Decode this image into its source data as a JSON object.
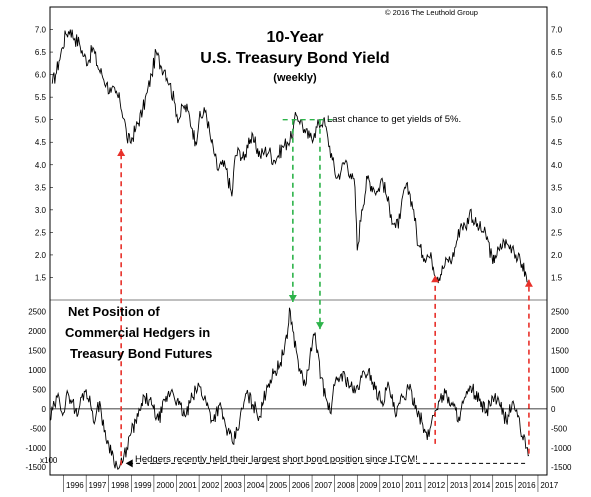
{
  "copyright": "© 2016 The Leuthold Group",
  "chart_data": [
    {
      "type": "line",
      "title": "10-Year",
      "subtitle": "U.S. Treasury Bond Yield",
      "note": "(weekly)",
      "ylim": [
        1.0,
        7.5
      ],
      "yticks": [
        "7.0",
        "6.5",
        "6.0",
        "5.5",
        "5.0",
        "4.5",
        "4.0",
        "3.5",
        "3.0",
        "2.5",
        "2.0",
        "1.5"
      ],
      "series": [
        {
          "x": [
            1995.5,
            1995.65,
            1995.8,
            1995.95,
            1996.1,
            1996.3,
            1996.5,
            1996.7,
            1996.9,
            1997.1,
            1997.3,
            1997.5,
            1997.7,
            1997.9,
            1998.1,
            1998.3,
            1998.5,
            1998.7,
            1998.8,
            1998.95,
            1999.2,
            1999.5,
            1999.7,
            1999.9,
            2000.1,
            2000.3,
            2000.5,
            2000.7,
            2000.9,
            2001.1,
            2001.3,
            2001.5,
            2001.7,
            2001.85,
            2002.0,
            2002.3,
            2002.5,
            2002.7,
            2002.8,
            2003.0,
            2003.2,
            2003.45,
            2003.6,
            2003.8,
            2004.0,
            2004.2,
            2004.45,
            2004.7,
            2004.9,
            2005.1,
            2005.3,
            2005.5,
            2005.7,
            2005.9,
            2006.1,
            2006.3,
            2006.5,
            2006.7,
            2006.9,
            2007.1,
            2007.3,
            2007.5,
            2007.7,
            2007.9,
            2008.1,
            2008.3,
            2008.5,
            2008.7,
            2008.9,
            2009.0,
            2009.2,
            2009.45,
            2009.7,
            2009.9,
            2010.1,
            2010.3,
            2010.5,
            2010.7,
            2010.9,
            2011.1,
            2011.3,
            2011.5,
            2011.7,
            2011.9,
            2012.1,
            2012.3,
            2012.55,
            2012.8,
            2013.0,
            2013.2,
            2013.4,
            2013.6,
            2013.8,
            2014.0,
            2014.2,
            2014.4,
            2014.6,
            2014.8,
            2015.0,
            2015.1,
            2015.3,
            2015.5,
            2015.7,
            2015.9,
            2016.1,
            2016.3,
            2016.55
          ],
          "values": [
            5.8,
            6.0,
            6.3,
            6.6,
            6.9,
            7.0,
            6.8,
            6.7,
            6.4,
            6.3,
            6.6,
            6.2,
            6.0,
            5.8,
            5.6,
            5.6,
            5.4,
            5.0,
            4.6,
            4.5,
            4.8,
            5.2,
            5.6,
            6.0,
            6.5,
            6.2,
            6.1,
            5.8,
            5.4,
            5.0,
            5.3,
            5.2,
            4.8,
            4.5,
            5.0,
            5.2,
            4.6,
            4.2,
            3.9,
            4.0,
            3.9,
            3.3,
            4.2,
            4.3,
            4.1,
            4.6,
            4.5,
            4.2,
            4.3,
            4.3,
            4.1,
            4.2,
            4.4,
            4.5,
            4.6,
            5.1,
            5.0,
            4.7,
            4.6,
            4.7,
            4.9,
            5.0,
            4.6,
            4.1,
            3.7,
            3.9,
            4.1,
            3.8,
            3.5,
            2.1,
            3.0,
            3.7,
            3.5,
            3.4,
            3.7,
            3.3,
            2.9,
            2.6,
            2.8,
            3.5,
            3.4,
            3.0,
            2.2,
            2.0,
            2.0,
            1.9,
            1.5,
            1.7,
            1.9,
            1.9,
            2.3,
            2.7,
            2.6,
            3.0,
            2.7,
            2.6,
            2.5,
            2.3,
            1.8,
            2.0,
            2.1,
            2.3,
            2.2,
            2.2,
            1.9,
            1.8,
            1.4
          ]
        }
      ]
    },
    {
      "type": "line",
      "title": "Net Position  of Commercial Hedgers in Treasury Bond Futures",
      "units": "x100",
      "ylim": [
        -1700,
        2800
      ],
      "yticks": [
        "2500",
        "2000",
        "1500",
        "1000",
        "500",
        "0",
        "-500",
        "-1000",
        "-1500"
      ],
      "series": [
        {
          "x": [
            1995.4,
            1995.6,
            1995.8,
            1996.0,
            1996.2,
            1996.4,
            1996.6,
            1996.8,
            1997.0,
            1997.2,
            1997.4,
            1997.6,
            1997.8,
            1998.0,
            1998.2,
            1998.4,
            1998.6,
            1998.8,
            1999.0,
            1999.3,
            1999.6,
            1999.9,
            2000.2,
            2000.5,
            2000.8,
            2001.1,
            2001.4,
            2001.7,
            2002.0,
            2002.3,
            2002.6,
            2002.9,
            2003.2,
            2003.5,
            2003.8,
            2004.1,
            2004.4,
            2004.7,
            2005.0,
            2005.3,
            2005.6,
            2005.9,
            2006.0,
            2006.15,
            2006.3,
            2006.5,
            2006.7,
            2006.9,
            2007.1,
            2007.25,
            2007.4,
            2007.6,
            2007.8,
            2008.0,
            2008.3,
            2008.6,
            2008.9,
            2009.2,
            2009.5,
            2009.8,
            2010.1,
            2010.4,
            2010.7,
            2011.0,
            2011.3,
            2011.6,
            2011.9,
            2012.1,
            2012.3,
            2012.6,
            2012.9,
            2013.2,
            2013.5,
            2013.8,
            2014.1,
            2014.4,
            2014.7,
            2015.0,
            2015.3,
            2015.6,
            2015.9,
            2016.1,
            2016.3,
            2016.5,
            2016.6
          ],
          "values": [
            -300,
            100,
            300,
            -100,
            400,
            200,
            -200,
            300,
            500,
            100,
            -300,
            200,
            -600,
            -900,
            -1200,
            -1550,
            -1400,
            -1000,
            -600,
            -200,
            300,
            100,
            -300,
            200,
            500,
            100,
            -200,
            300,
            600,
            200,
            -300,
            100,
            -500,
            -900,
            -300,
            400,
            100,
            -200,
            600,
            900,
            1200,
            1800,
            2600,
            2000,
            1500,
            900,
            600,
            1300,
            1900,
            1500,
            800,
            300,
            -100,
            600,
            900,
            700,
            400,
            800,
            1000,
            500,
            200,
            600,
            -200,
            300,
            500,
            100,
            -400,
            -800,
            -300,
            200,
            400,
            100,
            -200,
            300,
            500,
            200,
            -100,
            300,
            100,
            -300,
            200,
            -200,
            -700,
            -1000,
            -1200
          ]
        }
      ]
    }
  ],
  "xticks": [
    "1996",
    "1997",
    "1998",
    "1999",
    "2000",
    "2001",
    "2002",
    "2003",
    "2004",
    "2005",
    "2006",
    "2007",
    "2008",
    "2009",
    "2010",
    "2011",
    "2012",
    "2013",
    "2014",
    "2015",
    "2016",
    "2017"
  ],
  "annotations": {
    "yield_note": "Last chance to get yields of 5%.",
    "hedger_note": "Hedgers recently held their largest short bond position since LTCM!"
  },
  "colors": {
    "line": "#000000",
    "red_arrow": "#e8302a",
    "green_arrow": "#2db34a"
  }
}
